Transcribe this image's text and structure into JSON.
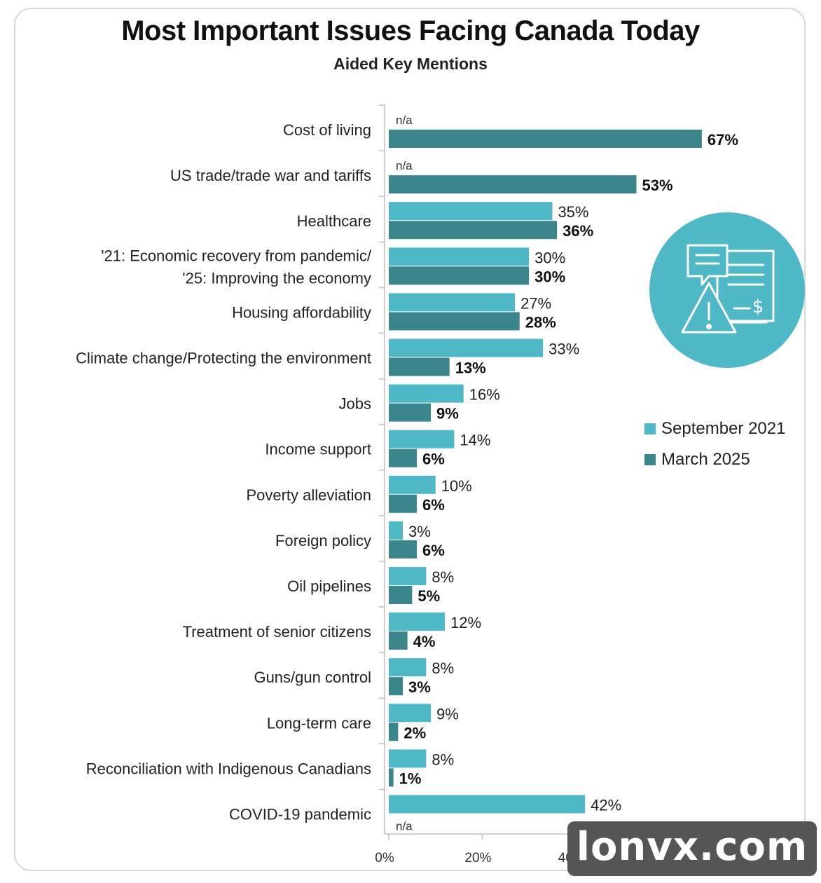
{
  "colors": {
    "series_2021": "#4fb8c7",
    "series_2025": "#3b868c",
    "icon_circle": "#4fb8c7"
  },
  "icon": "document-chat-warning-dollar-icon",
  "watermark": {
    "text": "lonvx.com"
  },
  "chart_data": {
    "type": "bar",
    "orientation": "horizontal",
    "title": "Most Important Issues Facing Canada Today",
    "subtitle": "Aided Key Mentions",
    "categories": [
      [
        "Cost of living"
      ],
      [
        "US trade/trade war and tariffs"
      ],
      [
        "Healthcare"
      ],
      [
        "'21: Economic recovery from pandemic/",
        "'25: Improving the economy"
      ],
      [
        "Housing affordability"
      ],
      [
        "Climate change/Protecting the environment"
      ],
      [
        "Jobs"
      ],
      [
        "Income support"
      ],
      [
        "Poverty alleviation"
      ],
      [
        "Foreign policy"
      ],
      [
        "Oil pipelines"
      ],
      [
        "Treatment of senior citizens"
      ],
      [
        "Guns/gun control"
      ],
      [
        "Long-term care"
      ],
      [
        "Reconciliation with Indigenous Canadians"
      ],
      [
        "COVID-19 pandemic"
      ]
    ],
    "series": [
      {
        "name": "September 2021",
        "values": [
          null,
          null,
          35,
          30,
          27,
          33,
          16,
          14,
          10,
          3,
          8,
          12,
          8,
          9,
          8,
          42
        ],
        "labels": [
          "n/a",
          "n/a",
          "35%",
          "30%",
          "27%",
          "33%",
          "16%",
          "14%",
          "10%",
          "3%",
          "8%",
          "12%",
          "8%",
          "9%",
          "8%",
          "42%"
        ]
      },
      {
        "name": "March 2025",
        "values": [
          67,
          53,
          36,
          30,
          28,
          13,
          9,
          6,
          6,
          6,
          5,
          4,
          3,
          2,
          1,
          null
        ],
        "labels": [
          "67%",
          "53%",
          "36%",
          "30%",
          "28%",
          "13%",
          "9%",
          "6%",
          "6%",
          "6%",
          "5%",
          "4%",
          "3%",
          "2%",
          "1%",
          "n/a"
        ]
      }
    ],
    "xticks": [
      "0%",
      "20%",
      "40%"
    ],
    "xlim": [
      0,
      80
    ],
    "legend_position": "right"
  }
}
